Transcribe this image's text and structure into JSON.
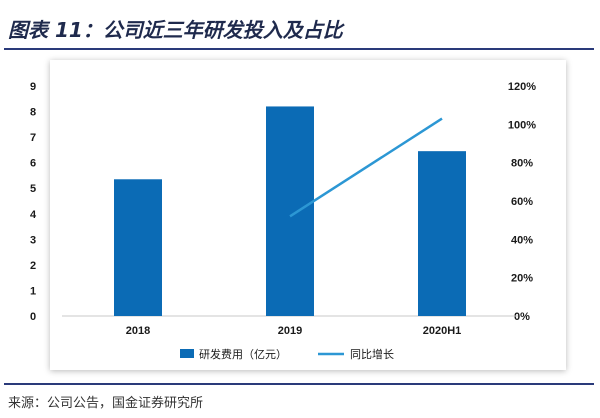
{
  "title": "图表 11：公司近三年研发投入及占比",
  "source": "来源：公司公告，国金证券研究所",
  "colors": {
    "bar": "#0b6bb5",
    "line": "#2c97d4",
    "frame": "#2a3a7a"
  },
  "chart_data": {
    "type": "bar",
    "categories": [
      "2018",
      "2019",
      "2020H1"
    ],
    "series": [
      {
        "name": "研发费用（亿元）",
        "type": "bar",
        "axis": "left",
        "values": [
          5.35,
          8.2,
          6.45
        ]
      },
      {
        "name": "同比增长",
        "type": "line",
        "axis": "right",
        "values": [
          null,
          52,
          103
        ]
      }
    ],
    "ylim": [
      0,
      9
    ],
    "yticks": [
      "0",
      "1",
      "2",
      "3",
      "4",
      "5",
      "6",
      "7",
      "8",
      "9"
    ],
    "y2lim": [
      0,
      120
    ],
    "y2ticks": [
      "0%",
      "20%",
      "40%",
      "60%",
      "80%",
      "100%",
      "120%"
    ],
    "legend_position": "bottom",
    "grid": false
  }
}
